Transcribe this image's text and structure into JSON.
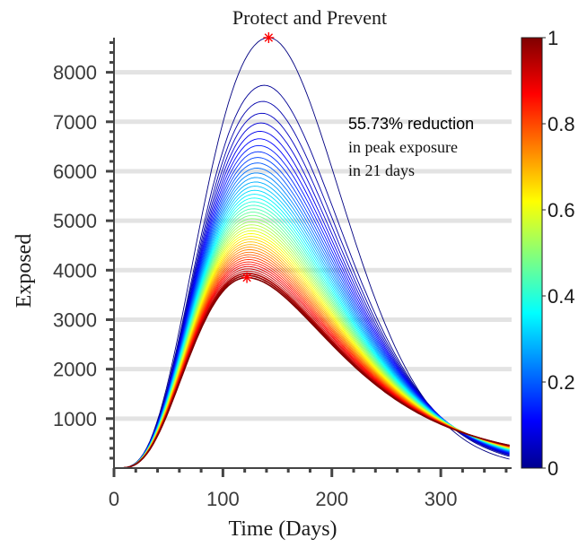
{
  "chart_data": {
    "type": "line",
    "title": "Protect and Prevent",
    "xlabel": "Time (Days)",
    "ylabel": "Exposed",
    "xlim": [
      0,
      365
    ],
    "ylim": [
      0,
      8700
    ],
    "x_ticks": [
      0,
      100,
      200,
      300
    ],
    "y_ticks": [
      1000,
      2000,
      3000,
      4000,
      5000,
      6000,
      7000,
      8000
    ],
    "grid": "horizontal",
    "annotation": {
      "line1": "55.73% reduction",
      "line2": "in peak exposure",
      "line3": "in 21 days"
    },
    "colorbar": {
      "colormap": "jet",
      "range": [
        0,
        1
      ],
      "ticks": [
        "0",
        "0.2",
        "0.4",
        "0.6",
        "0.8",
        "1"
      ]
    },
    "peak_markers": [
      {
        "x": 142,
        "y": 8700,
        "color": "#ff0000"
      },
      {
        "x": 122,
        "y": 3850,
        "color": "#ff0000"
      }
    ],
    "curves": {
      "count": 48,
      "parameter_range": [
        0,
        1
      ],
      "first_peak": {
        "day": 142,
        "value": 8700
      },
      "last_peak": {
        "day": 122,
        "value": 3850
      },
      "end_values_day365": {
        "first": 170,
        "last": 450
      },
      "crossover": {
        "day": 300,
        "value": 1000
      }
    },
    "colors": {
      "grid": "#e3e3e3",
      "marker": "#ff0000"
    }
  }
}
